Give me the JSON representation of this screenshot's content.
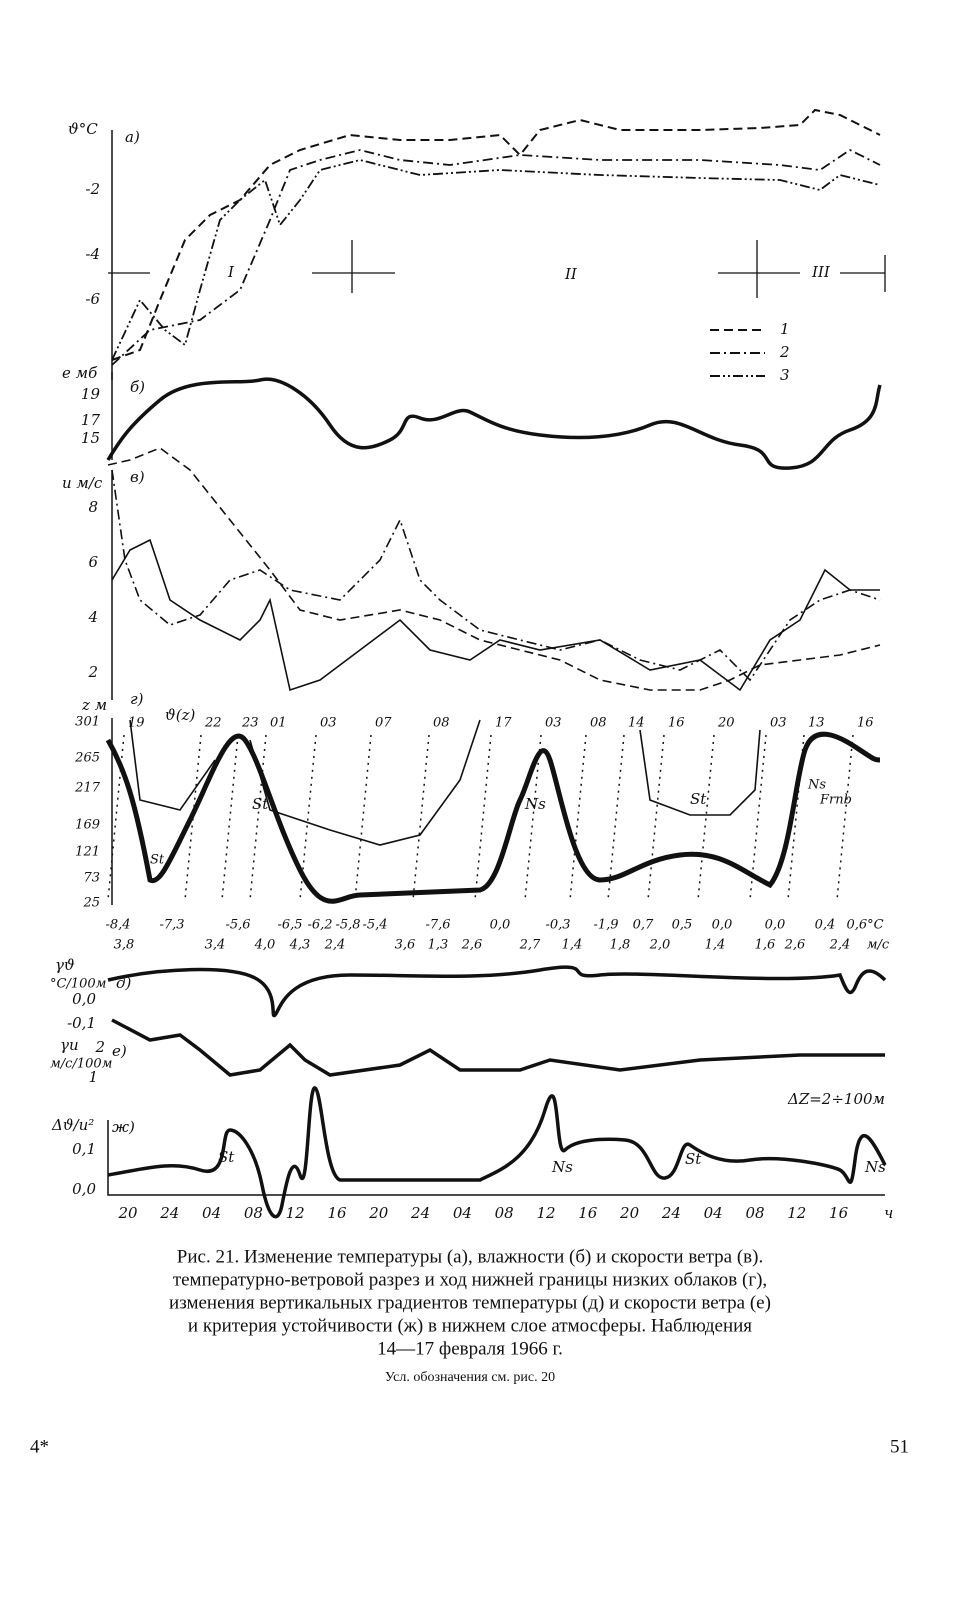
{
  "figure": {
    "panel_a": {
      "label": "а)",
      "axis": "ϑ°C",
      "ticks": [
        "-2",
        "-4",
        "-6"
      ],
      "periods": [
        "I",
        "II",
        "III"
      ],
      "legend": [
        "1",
        "2",
        "3"
      ]
    },
    "panel_b": {
      "label": "б)",
      "axis": "e мб",
      "ticks": [
        "19",
        "17",
        "15"
      ]
    },
    "panel_v": {
      "label": "в)",
      "axis": "u м/с",
      "ticks": [
        "8",
        "6",
        "4",
        "2"
      ]
    },
    "panel_g": {
      "label": "г)",
      "axis": "z м",
      "curve_label": "ϑ(z)",
      "ticks": [
        "301",
        "265",
        "217",
        "169",
        "121",
        "73",
        "25"
      ],
      "hours": [
        "19",
        "22",
        "23",
        "01",
        "03",
        "07",
        "08",
        "17",
        "03",
        "08",
        "14",
        "16",
        "20",
        "03",
        "13",
        "16"
      ],
      "temperatures": [
        "-8,4",
        "-7,3",
        "-5,6",
        "-6,5",
        "-6,2",
        "-5,8",
        "-5,4",
        "-7,6",
        "0,0",
        "-0,3",
        "-1,9",
        "0,7",
        "0,5",
        "0,0",
        "0,0",
        "0,4",
        "0,6°C"
      ],
      "winds": [
        "3,8",
        "3,4",
        "4,0",
        "4,3",
        "2,4",
        "3,6",
        "1,3",
        "2,6",
        "2,7",
        "1,4",
        "1,8",
        "2,0",
        "1,4",
        "1,6",
        "2,6",
        "2,4",
        "м/с"
      ],
      "clouds": [
        "St",
        "St",
        "Ns",
        "St",
        "Ns",
        "Frnb"
      ]
    },
    "panel_d": {
      "label": "д)",
      "axis": "γϑ",
      "unit": "°C/100м",
      "ticks": [
        "0,0",
        "-0,1"
      ]
    },
    "panel_e": {
      "label": "е)",
      "axis": "γu",
      "unit": "м/с/100м",
      "ticks": [
        "2",
        "1"
      ],
      "note": "ΔZ=2÷100м"
    },
    "panel_zh": {
      "label": "ж)",
      "axis": "Δϑ/u²",
      "ticks": [
        "0,1",
        "0,0"
      ],
      "clouds": [
        "St",
        "Ns",
        "St",
        "Ns"
      ]
    },
    "time_axis": [
      "20",
      "24",
      "04",
      "08",
      "12",
      "16",
      "20",
      "24",
      "04",
      "08",
      "12",
      "16",
      "20",
      "24",
      "04",
      "08",
      "12",
      "16"
    ],
    "time_unit": "ч"
  },
  "caption": [
    "Рис. 21. Изменение температуры (а), влажности (б) и скорости ветра (в).",
    "температурно-ветровой разрез и ход нижней границы низких облаков (г),",
    "изменения вертикальных градиентов температуры (д) и скорости ветра (е)",
    "и критерия устойчивости (ж) в нижнем слое атмосферы. Наблюдения",
    "14—17 февраля 1966 г."
  ],
  "note": "Усл. обозначения см. рис. 20",
  "signature": "4*",
  "page_number": "51"
}
